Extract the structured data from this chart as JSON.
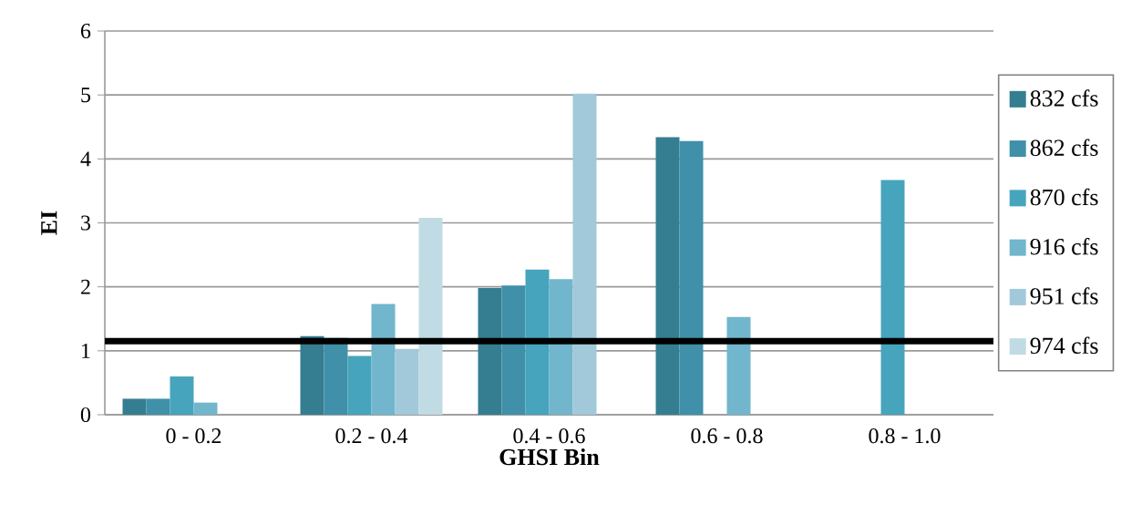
{
  "chart_data": {
    "type": "bar",
    "xlabel": "GHSI Bin",
    "ylabel": "EI",
    "categories": [
      "0 - 0.2",
      "0.2 - 0.4",
      "0.4 - 0.6",
      "0.6 - 0.8",
      "0.8 - 1.0"
    ],
    "series": [
      {
        "name": "832 cfs",
        "color": "#357d91",
        "values": [
          0.25,
          1.23,
          1.98,
          4.34,
          null
        ]
      },
      {
        "name": "862 cfs",
        "color": "#3f90a8",
        "values": [
          0.25,
          1.2,
          2.02,
          4.28,
          null
        ]
      },
      {
        "name": "870 cfs",
        "color": "#47a4bd",
        "values": [
          0.6,
          0.92,
          2.27,
          null,
          3.67
        ]
      },
      {
        "name": "916 cfs",
        "color": "#71b6cc",
        "values": [
          0.19,
          1.73,
          2.12,
          1.53,
          null
        ]
      },
      {
        "name": "951 cfs",
        "color": "#a2c9da",
        "values": [
          null,
          1.03,
          5.02,
          null,
          null
        ]
      },
      {
        "name": "974 cfs",
        "color": "#c1dbe4",
        "values": [
          null,
          3.08,
          null,
          null,
          null
        ]
      }
    ],
    "ylim": [
      0,
      6
    ],
    "yticks": [
      0,
      1,
      2,
      3,
      4,
      5,
      6
    ],
    "grid": "y",
    "legend": "right",
    "ref_lines": [
      {
        "axis": "y",
        "value": 1.15,
        "color": "#000000"
      }
    ]
  }
}
